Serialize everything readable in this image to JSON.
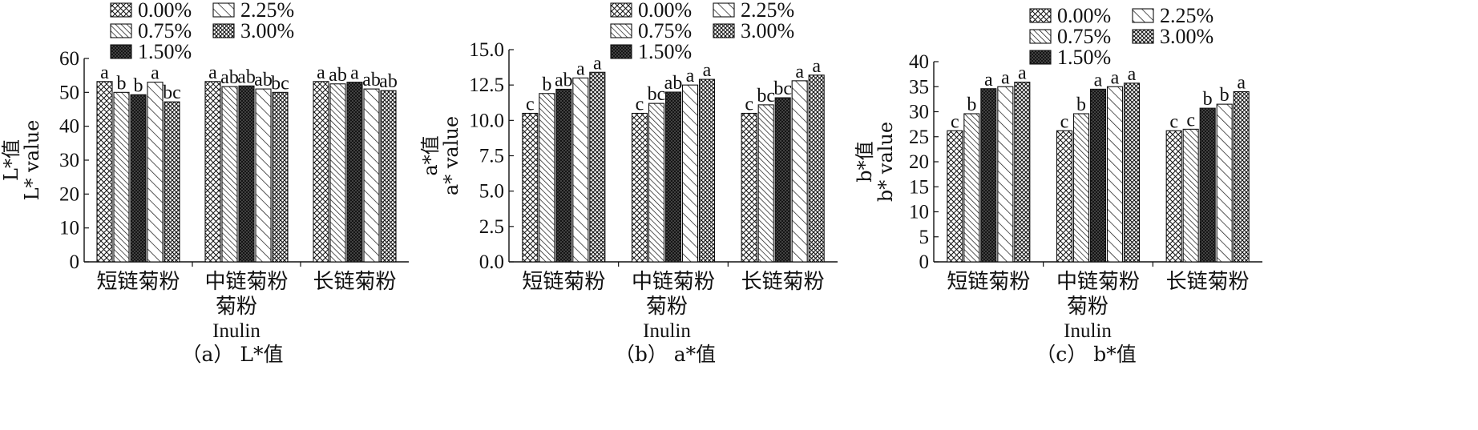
{
  "chart_data": [
    {
      "type": "bar",
      "panel_caption": "（a） L*值",
      "categories": [
        "短链菊粉",
        "中链菊粉",
        "长链菊粉"
      ],
      "xlabel": [
        "菊粉",
        "Inulin"
      ],
      "ylabel": [
        "L*值",
        "L* value"
      ],
      "ylim": [
        0,
        60
      ],
      "yticks": [
        0,
        10,
        20,
        30,
        40,
        50,
        60
      ],
      "legend": [
        "0.00%",
        "2.25%",
        "0.75%",
        "3.00%",
        "1.50%"
      ],
      "legend_position": "top-left",
      "grid": false,
      "series": [
        {
          "name": "0.00%",
          "values": [
            53.2,
            53.2,
            53.2
          ],
          "labels": [
            "a",
            "a",
            "a"
          ]
        },
        {
          "name": "0.75%",
          "values": [
            50.0,
            51.7,
            52.5
          ],
          "labels": [
            "b",
            "ab",
            "ab"
          ]
        },
        {
          "name": "1.50%",
          "values": [
            49.3,
            51.9,
            53.0
          ],
          "labels": [
            "b",
            "ab",
            "a"
          ]
        },
        {
          "name": "2.25%",
          "values": [
            53.0,
            51.0,
            51.0
          ],
          "labels": [
            "a",
            "ab",
            "ab"
          ]
        },
        {
          "name": "3.00%",
          "values": [
            47.2,
            50.0,
            50.5
          ],
          "labels": [
            "bc",
            "bc",
            "ab"
          ]
        }
      ]
    },
    {
      "type": "bar",
      "panel_caption": "（b） a*值",
      "categories": [
        "短链菊粉",
        "中链菊粉",
        "长链菊粉"
      ],
      "xlabel": [
        "菊粉",
        "Inulin"
      ],
      "ylabel": [
        "a*值",
        "a* value"
      ],
      "ylim": [
        0,
        15
      ],
      "yticks": [
        "0.0",
        "2.5",
        "5.0",
        "7.5",
        "10.0",
        "12.5",
        "15.0"
      ],
      "legend": [
        "0.00%",
        "2.25%",
        "0.75%",
        "3.00%",
        "1.50%"
      ],
      "legend_position": "top-right",
      "grid": false,
      "series": [
        {
          "name": "0.00%",
          "values": [
            10.5,
            10.5,
            10.5
          ],
          "labels": [
            "c",
            "c",
            "c"
          ]
        },
        {
          "name": "0.75%",
          "values": [
            11.9,
            11.2,
            11.1
          ],
          "labels": [
            "b",
            "bc",
            "bc"
          ]
        },
        {
          "name": "1.50%",
          "values": [
            12.2,
            12.0,
            11.6
          ],
          "labels": [
            "ab",
            "ab",
            "bc"
          ]
        },
        {
          "name": "2.25%",
          "values": [
            13.0,
            12.5,
            12.8
          ],
          "labels": [
            "a",
            "a",
            "a"
          ]
        },
        {
          "name": "3.00%",
          "values": [
            13.4,
            12.9,
            13.2
          ],
          "labels": [
            "a",
            "a",
            "a"
          ]
        }
      ]
    },
    {
      "type": "bar",
      "panel_caption": "（c） b*值",
      "categories": [
        "短链菊粉",
        "中链菊粉",
        "长链菊粉"
      ],
      "xlabel": [
        "菊粉",
        "Inulin"
      ],
      "ylabel": [
        "b*值",
        "b* value"
      ],
      "ylim": [
        0,
        40
      ],
      "yticks": [
        0,
        5,
        10,
        15,
        20,
        25,
        30,
        35,
        40
      ],
      "legend": [
        "0.00%",
        "2.25%",
        "0.75%",
        "3.00%",
        "1.50%"
      ],
      "legend_position": "top-right",
      "grid": false,
      "series": [
        {
          "name": "0.00%",
          "values": [
            26.2,
            26.2,
            26.2
          ],
          "labels": [
            "c",
            "c",
            "c"
          ]
        },
        {
          "name": "0.75%",
          "values": [
            29.6,
            29.6,
            26.5
          ],
          "labels": [
            "b",
            "b",
            "c"
          ]
        },
        {
          "name": "1.50%",
          "values": [
            34.6,
            34.5,
            30.7
          ],
          "labels": [
            "a",
            "a",
            "b"
          ]
        },
        {
          "name": "2.25%",
          "values": [
            35.0,
            35.0,
            31.5
          ],
          "labels": [
            "a",
            "a",
            "b"
          ]
        },
        {
          "name": "3.00%",
          "values": [
            35.9,
            35.7,
            34.0
          ],
          "labels": [
            "a",
            "a",
            "a"
          ]
        }
      ]
    }
  ]
}
